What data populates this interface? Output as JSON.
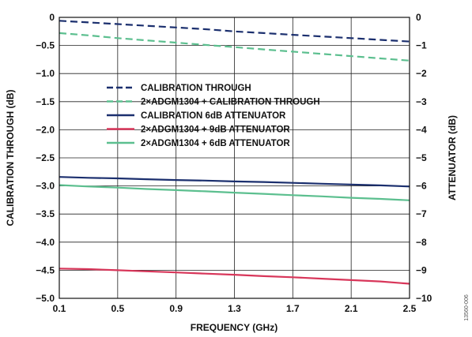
{
  "chart_data": {
    "type": "line",
    "title": "",
    "xlabel": "FREQUENCY (GHz)",
    "ylabel": "CALIBRATION THROUGH (dB)",
    "y2label": "ATTENUATOR (dB)",
    "xlim": [
      0.1,
      2.5
    ],
    "ylim": [
      -5.0,
      0
    ],
    "y2lim": [
      -10,
      0
    ],
    "xticks": [
      "0.1",
      "0.5",
      "0.9",
      "1.3",
      "1.7",
      "2.1",
      "2.5"
    ],
    "yticks": [
      "0",
      "−0.5",
      "−1.0",
      "−1.5",
      "−2.0",
      "−2.5",
      "−3.0",
      "−3.5",
      "−4.0",
      "−4.5",
      "−5.0"
    ],
    "y2ticks": [
      "0",
      "−1",
      "−2",
      "−3",
      "−4",
      "−5",
      "−6",
      "−7",
      "−8",
      "−9",
      "−10"
    ],
    "grid": true,
    "legend_position": "center-left",
    "series": [
      {
        "name": "CALIBRATION THROUGH",
        "axis": "left",
        "color": "#1b2f6e",
        "dash": true,
        "x": [
          0.1,
          0.3,
          0.5,
          0.7,
          0.9,
          1.1,
          1.3,
          1.5,
          1.7,
          1.9,
          2.1,
          2.3,
          2.5
        ],
        "y": [
          -0.06,
          -0.09,
          -0.12,
          -0.15,
          -0.18,
          -0.21,
          -0.25,
          -0.28,
          -0.31,
          -0.34,
          -0.37,
          -0.4,
          -0.43
        ]
      },
      {
        "name": "2×ADGM1304 + CALIBRATION THROUGH",
        "axis": "left",
        "color": "#5cbf8f",
        "dash": true,
        "x": [
          0.1,
          0.3,
          0.5,
          0.7,
          0.9,
          1.1,
          1.3,
          1.5,
          1.7,
          1.9,
          2.1,
          2.3,
          2.5
        ],
        "y": [
          -0.28,
          -0.32,
          -0.37,
          -0.41,
          -0.45,
          -0.49,
          -0.53,
          -0.57,
          -0.61,
          -0.65,
          -0.69,
          -0.73,
          -0.77
        ]
      },
      {
        "name": "CALIBRATION 6dB ATTENUATOR",
        "axis": "right",
        "color": "#1b2f6e",
        "dash": false,
        "x": [
          0.1,
          0.3,
          0.5,
          0.7,
          0.9,
          1.1,
          1.3,
          1.5,
          1.7,
          1.9,
          2.1,
          2.3,
          2.5
        ],
        "y": [
          -5.68,
          -5.71,
          -5.73,
          -5.76,
          -5.79,
          -5.81,
          -5.84,
          -5.86,
          -5.89,
          -5.92,
          -5.95,
          -5.98,
          -6.02
        ]
      },
      {
        "name": "2×ADGM1304  + 9dB ATTENUATOR",
        "axis": "right",
        "color": "#d8365a",
        "dash": false,
        "x": [
          0.1,
          0.3,
          0.5,
          0.7,
          0.9,
          1.1,
          1.3,
          1.5,
          1.7,
          1.9,
          2.1,
          2.3,
          2.5
        ],
        "y": [
          -8.94,
          -8.96,
          -9.0,
          -9.04,
          -9.08,
          -9.12,
          -9.16,
          -9.21,
          -9.25,
          -9.3,
          -9.35,
          -9.4,
          -9.48
        ]
      },
      {
        "name": "2×ADGM1304 + 6dB ATTENUATOR",
        "axis": "right",
        "color": "#5cbf8f",
        "dash": false,
        "x": [
          0.1,
          0.3,
          0.5,
          0.7,
          0.9,
          1.1,
          1.3,
          1.5,
          1.7,
          1.9,
          2.1,
          2.3,
          2.5
        ],
        "y": [
          -5.97,
          -6.02,
          -6.06,
          -6.11,
          -6.15,
          -6.19,
          -6.24,
          -6.28,
          -6.33,
          -6.37,
          -6.42,
          -6.46,
          -6.51
        ]
      }
    ]
  },
  "figure_id": "13560-006"
}
